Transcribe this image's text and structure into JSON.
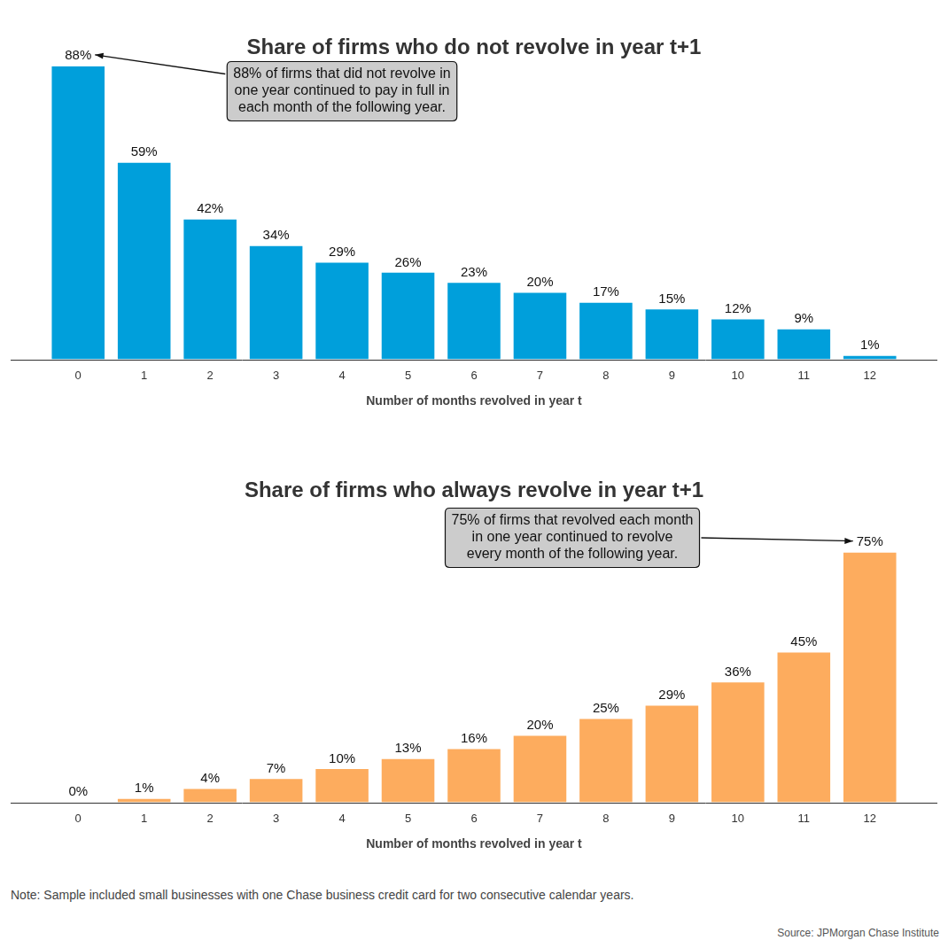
{
  "chart_data": [
    {
      "type": "bar",
      "title": "Share of firms who do not revolve in year t+1",
      "x_label": "Number of months revolved in year t",
      "categories": [
        "0",
        "1",
        "2",
        "3",
        "4",
        "5",
        "6",
        "7",
        "8",
        "9",
        "10",
        "11",
        "12"
      ],
      "values": [
        88,
        59,
        42,
        34,
        29,
        26,
        23,
        20,
        17,
        15,
        12,
        9,
        1
      ],
      "value_labels": [
        "88%",
        "59%",
        "42%",
        "34%",
        "29%",
        "26%",
        "23%",
        "20%",
        "17%",
        "15%",
        "12%",
        "9%",
        "1%"
      ],
      "color": "#009fdb",
      "data_labels": true,
      "tick_labels": "x",
      "grid": false,
      "annotation": [
        "88% of firms that did not revolve in",
        "one year continued to pay in full in",
        "each month of the following year."
      ]
    },
    {
      "type": "bar",
      "title": "Share of firms who always revolve in year t+1",
      "x_label": "Number of months revolved in year t",
      "categories": [
        "0",
        "1",
        "2",
        "3",
        "4",
        "5",
        "6",
        "7",
        "8",
        "9",
        "10",
        "11",
        "12"
      ],
      "values": [
        0,
        1,
        4,
        7,
        10,
        13,
        16,
        20,
        25,
        29,
        36,
        45,
        75
      ],
      "value_labels": [
        "0%",
        "1%",
        "4%",
        "7%",
        "10%",
        "13%",
        "16%",
        "20%",
        "25%",
        "29%",
        "36%",
        "45%",
        "75%"
      ],
      "color": "#fdac5e",
      "data_labels": true,
      "tick_labels": "x",
      "grid": false,
      "annotation": [
        "75% of firms that revolved each month",
        "in one year continued to revolve",
        "every month of the following year."
      ]
    }
  ],
  "note": "Note: Sample included small businesses with one Chase business credit card for two consecutive calendar years.",
  "source": "Source: JPMorgan Chase Institute"
}
